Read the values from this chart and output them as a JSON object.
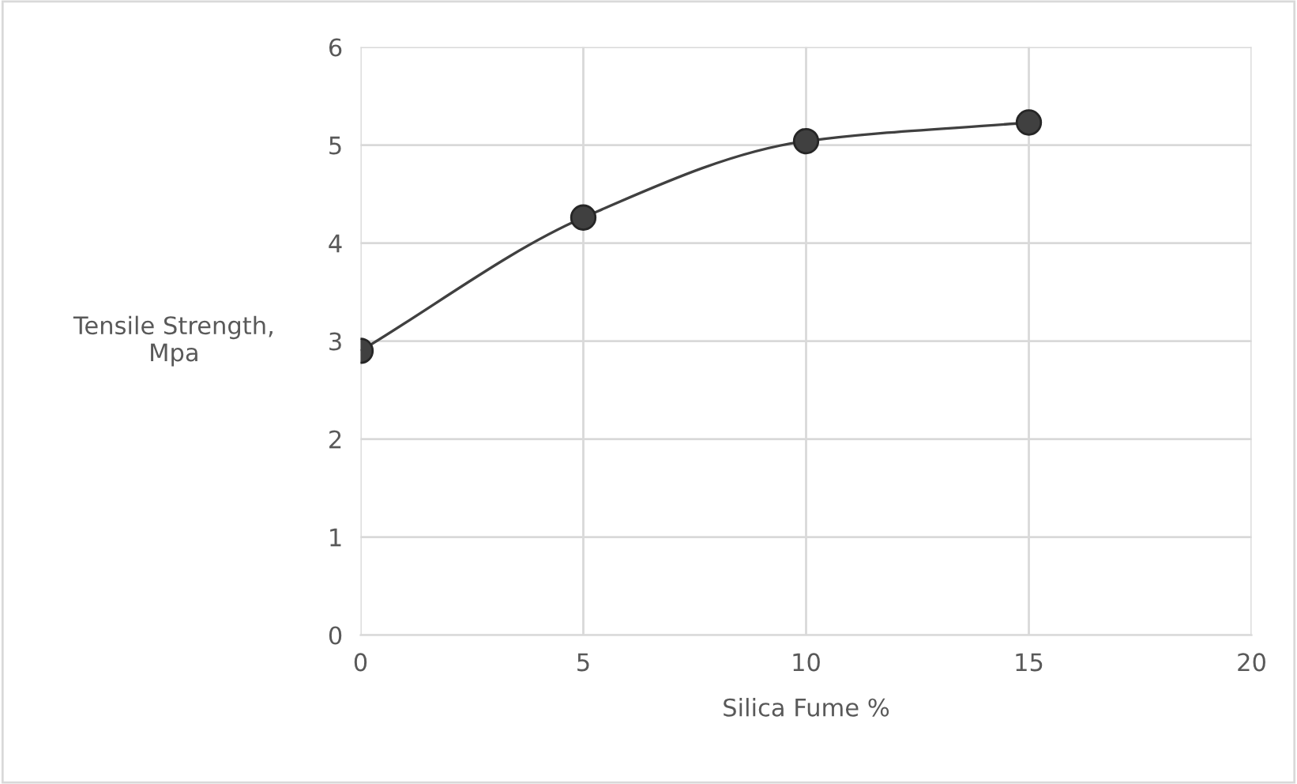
{
  "chart_data": {
    "type": "line",
    "xlabel": "Silica Fume %",
    "ylabel": "Tensile Strength,\nMpa",
    "x": [
      0,
      5,
      10,
      15
    ],
    "series": [
      {
        "color": "#404040",
        "values": [
          2.9,
          4.26,
          5.04,
          5.23
        ]
      }
    ],
    "xlim": [
      0,
      20
    ],
    "xticks": [
      0,
      5,
      10,
      15,
      20
    ],
    "ylim": [
      0,
      6
    ],
    "yticks": [
      0,
      1,
      2,
      3,
      4,
      5,
      6
    ],
    "grid": true,
    "marker": "circle",
    "line_style": "solid",
    "legend": false
  }
}
